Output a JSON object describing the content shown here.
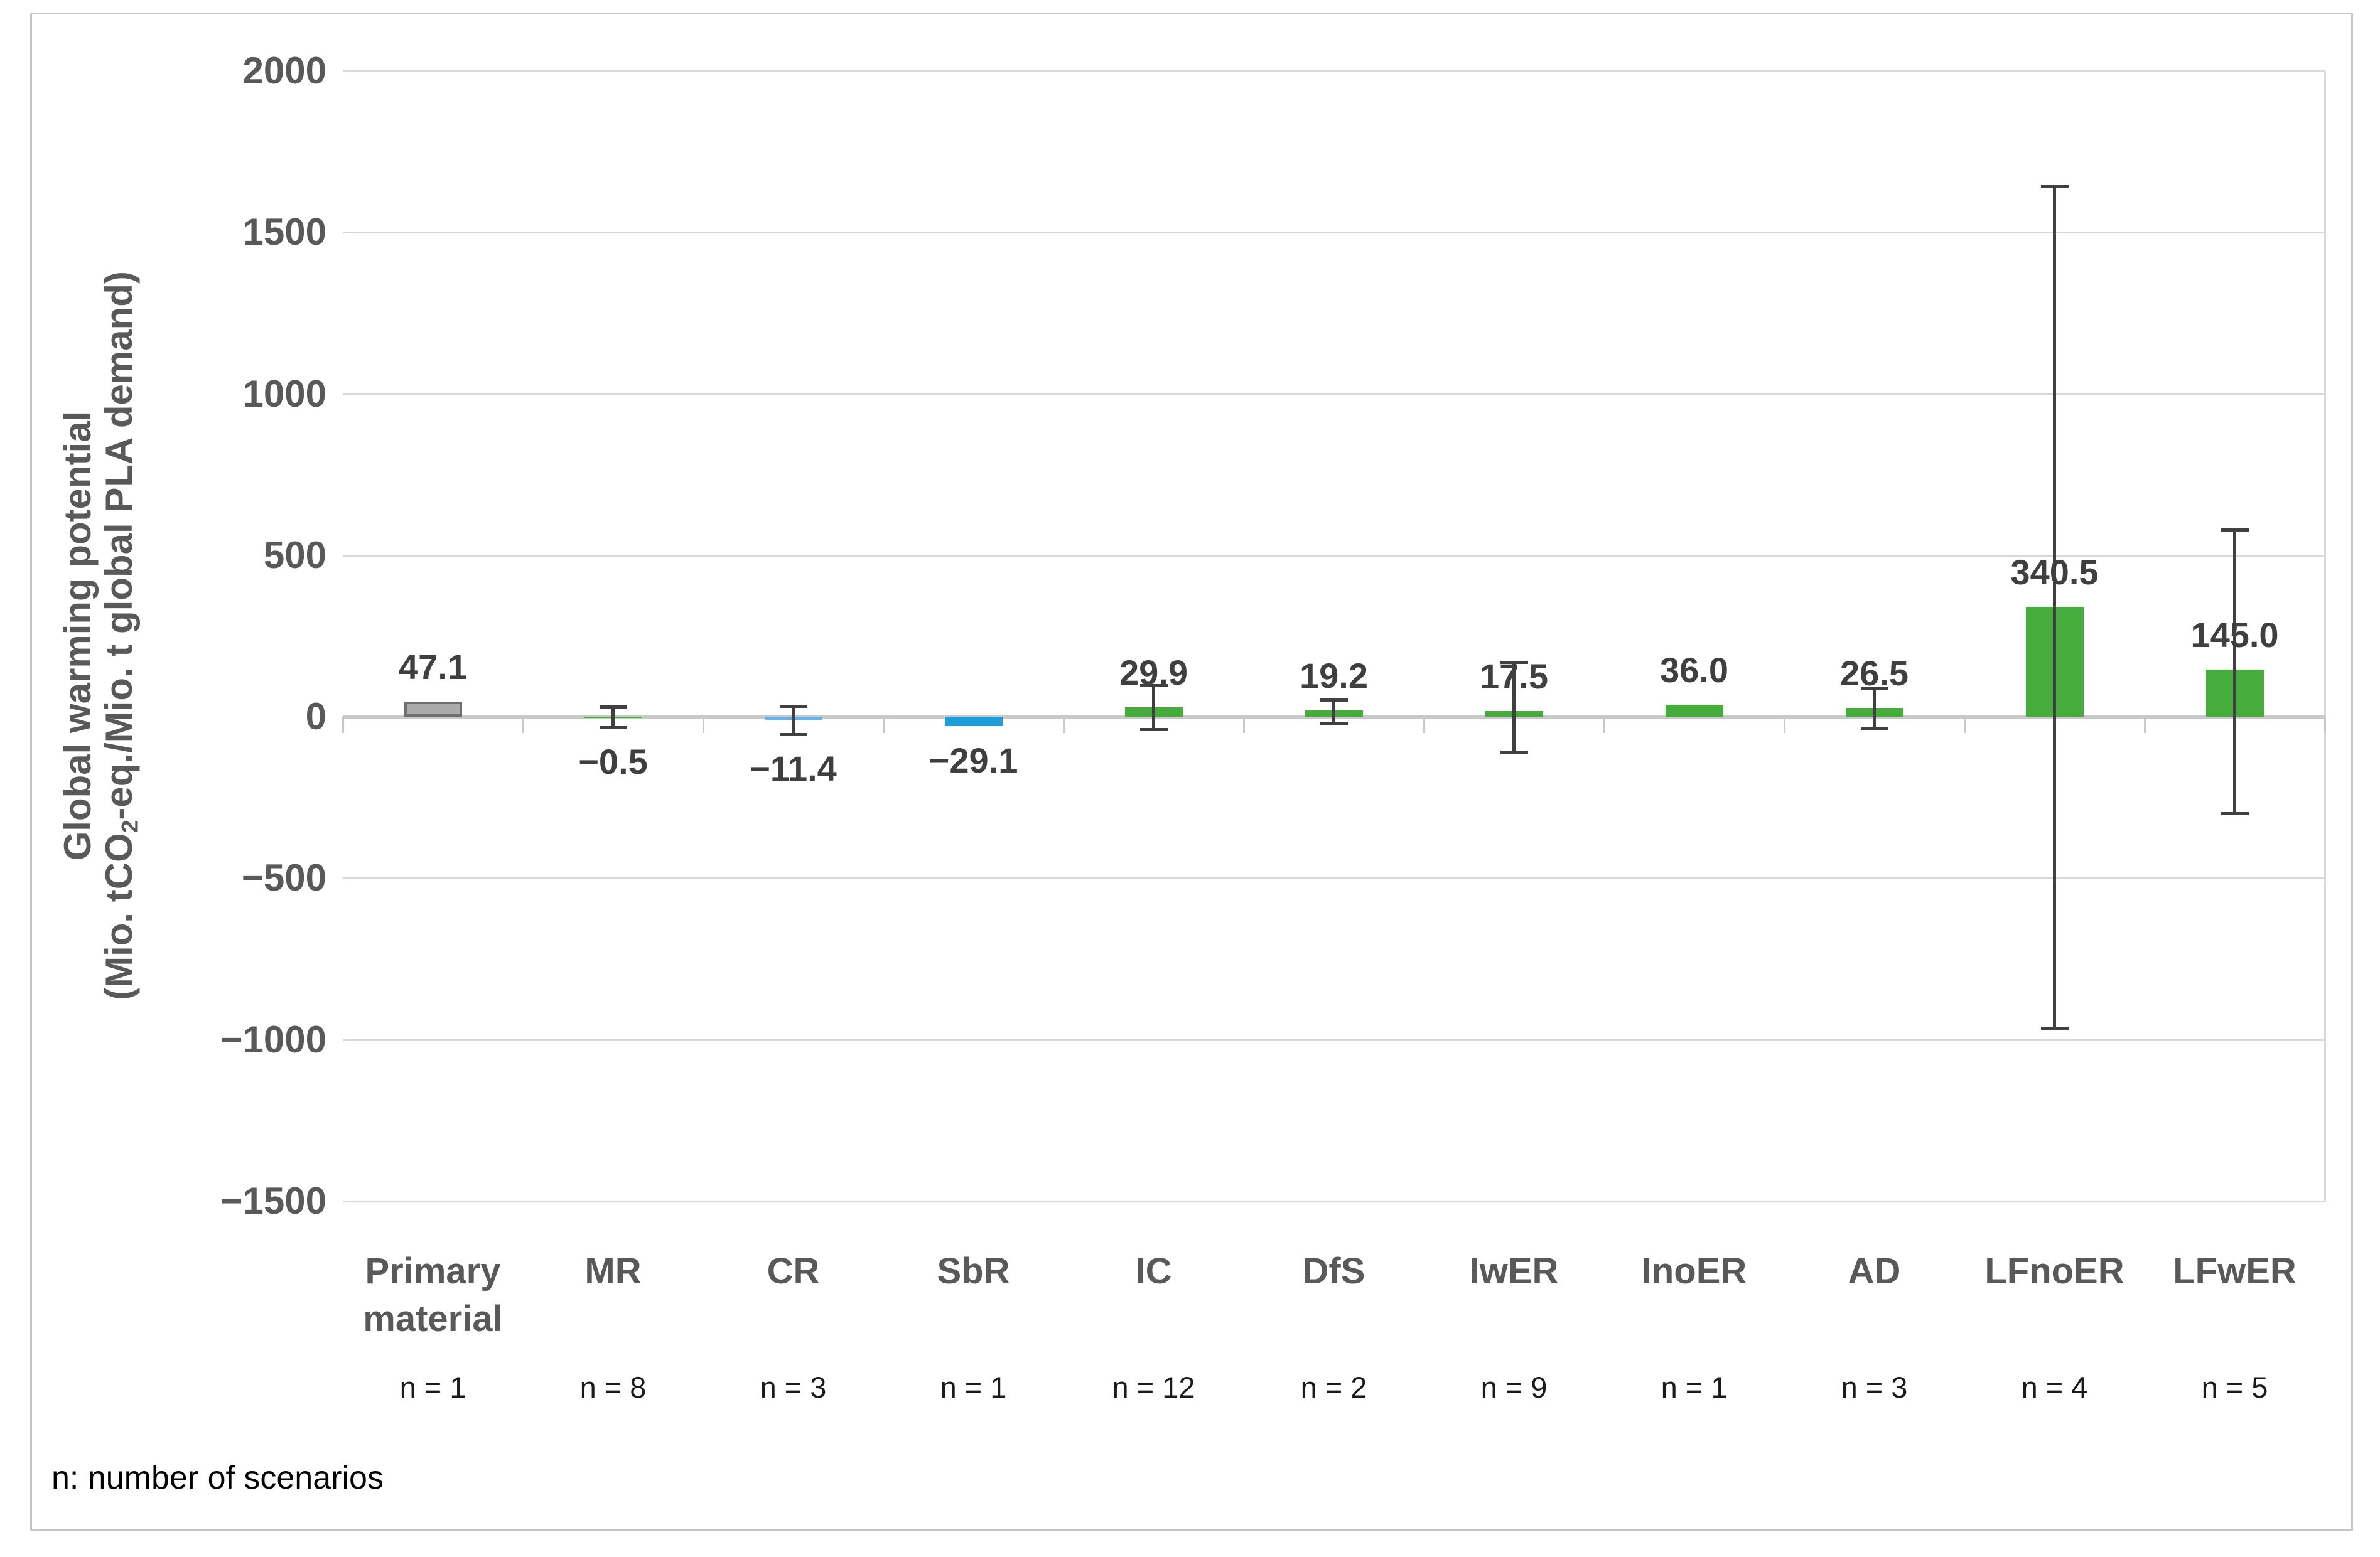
{
  "figure_type": "bar chart",
  "y_axis": {
    "title_line1": "Global warming potential",
    "title_line2_pre": "(Mio. tCO",
    "title_line2_sub": "2",
    "title_line2_post": "-eq./Mio. t global PLA demand)",
    "range": [
      -1500,
      2000
    ],
    "ticks": [
      {
        "label": "2000",
        "value": 2000
      },
      {
        "label": "1500",
        "value": 1500
      },
      {
        "label": "1000",
        "value": 1000
      },
      {
        "label": "500",
        "value": 500
      },
      {
        "label": "0",
        "value": 0
      },
      {
        "label": "−500",
        "value": -500
      },
      {
        "label": "−1000",
        "value": -1000
      },
      {
        "label": "−1500",
        "value": -1500
      }
    ]
  },
  "footnote": "n: number of scenarios",
  "colors": {
    "primary_fill": "#ababab",
    "primary_border": "#6e6e6e",
    "light_blue": "#6cb0e0",
    "blue": "#1e9dd9",
    "green": "#46ad3c",
    "error_bar": "#404040",
    "gridline": "#d9d9d9",
    "axis_line": "#c9c9c9",
    "tick_text": "#595959",
    "value_text": "#3f3f3f"
  },
  "bars": [
    {
      "category": [
        "Primary",
        "material"
      ],
      "n": "n = 1",
      "value": 47.1,
      "value_label": "47.1",
      "color_key": "primary",
      "err_high": null,
      "err_low": null
    },
    {
      "category": [
        "MR"
      ],
      "n": "n = 8",
      "value": -0.5,
      "value_label": "−0.5",
      "color_key": "green",
      "err_high": 32,
      "err_low": -33
    },
    {
      "category": [
        "CR"
      ],
      "n": "n = 3",
      "value": -11.4,
      "value_label": "−11.4",
      "color_key": "light_blue",
      "err_high": 34,
      "err_low": -55
    },
    {
      "category": [
        "SbR"
      ],
      "n": "n = 1",
      "value": -29.1,
      "value_label": "−29.1",
      "color_key": "blue",
      "err_high": null,
      "err_low": null
    },
    {
      "category": [
        "IC"
      ],
      "n": "n = 12",
      "value": 29.9,
      "value_label": "29.9",
      "color_key": "green",
      "err_high": 97,
      "err_low": -38
    },
    {
      "category": [
        "DfS"
      ],
      "n": "n = 2",
      "value": 19.2,
      "value_label": "19.2",
      "color_key": "green",
      "err_high": 52,
      "err_low": -20
    },
    {
      "category": [
        "IwER"
      ],
      "n": "n = 9",
      "value": 17.5,
      "value_label": "17.5",
      "color_key": "green",
      "err_high": 170,
      "err_low": -108
    },
    {
      "category": [
        "InoER"
      ],
      "n": "n = 1",
      "value": 36.0,
      "value_label": "36.0",
      "color_key": "green",
      "err_high": null,
      "err_low": null
    },
    {
      "category": [
        "AD"
      ],
      "n": "n = 3",
      "value": 26.5,
      "value_label": "26.5",
      "color_key": "green",
      "err_high": 87,
      "err_low": -35
    },
    {
      "category": [
        "LFnoER"
      ],
      "n": "n = 4",
      "value": 340.5,
      "value_label": "340.5",
      "color_key": "green",
      "err_high": 1645,
      "err_low": -965
    },
    {
      "category": [
        "LFwER"
      ],
      "n": "n = 5",
      "value": 145.0,
      "value_label": "145.0",
      "color_key": "green",
      "err_high": 580,
      "err_low": -300
    }
  ],
  "chart_data": {
    "type": "bar",
    "title": "",
    "xlabel": "",
    "ylabel": "Global warming potential (Mio. tCO2-eq./Mio. t global PLA demand)",
    "ylim": [
      -1500,
      2000
    ],
    "ytick_step": 500,
    "grid": true,
    "legend": "none",
    "categories": [
      "Primary material",
      "MR",
      "CR",
      "SbR",
      "IC",
      "DfS",
      "IwER",
      "InoER",
      "AD",
      "LFnoER",
      "LFwER"
    ],
    "values": [
      47.1,
      -0.5,
      -11.4,
      -29.1,
      29.9,
      19.2,
      17.5,
      36.0,
      26.5,
      340.5,
      145.0
    ],
    "n_scenarios": [
      1,
      8,
      3,
      1,
      12,
      2,
      9,
      1,
      3,
      4,
      5
    ],
    "error_whisker_high": [
      null,
      32,
      34,
      null,
      97,
      52,
      170,
      null,
      87,
      1645,
      580
    ],
    "error_whisker_low": [
      null,
      -33,
      -55,
      null,
      -38,
      -20,
      -108,
      null,
      -35,
      -965,
      -300
    ],
    "bar_colors": [
      "#ababab",
      "#46ad3c",
      "#6cb0e0",
      "#1e9dd9",
      "#46ad3c",
      "#46ad3c",
      "#46ad3c",
      "#46ad3c",
      "#46ad3c",
      "#46ad3c",
      "#46ad3c"
    ],
    "annotations": [
      "n: number of scenarios"
    ]
  }
}
